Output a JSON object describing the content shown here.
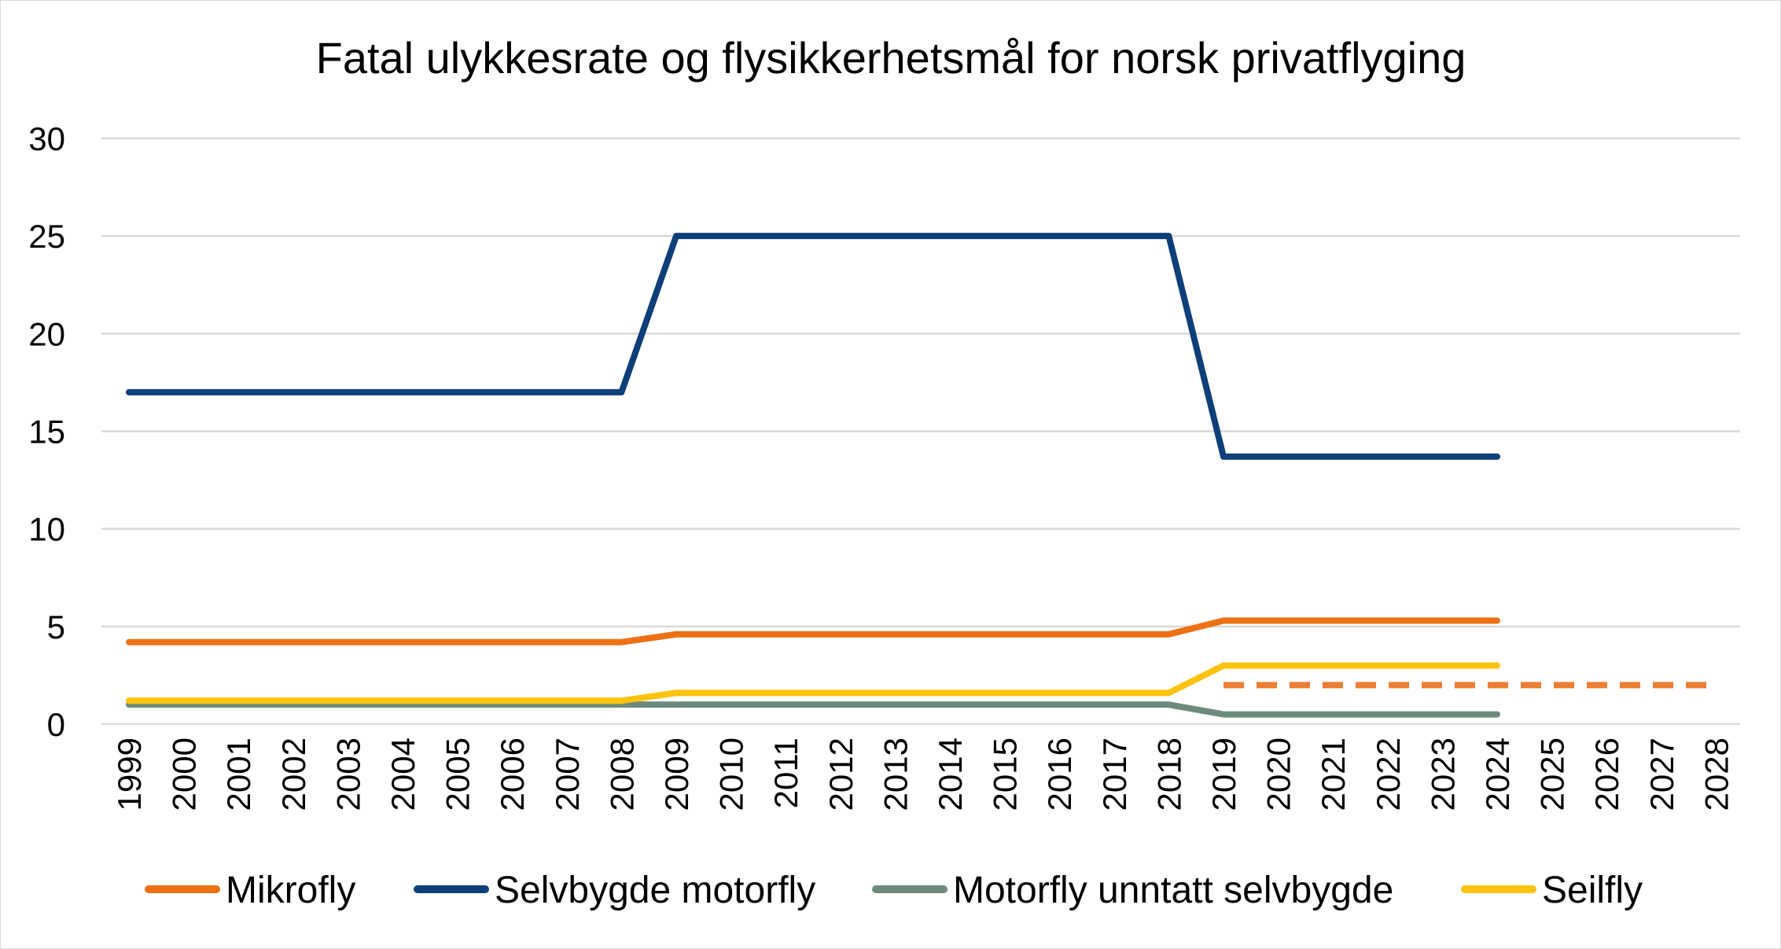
{
  "chart_data": {
    "type": "line",
    "title": "Fatal ulykkesrate og flysikkerhetsmål for norsk privatflyging",
    "xlabel": "",
    "ylabel": "",
    "ylim": [
      0,
      30
    ],
    "yticks": [
      "0",
      "5",
      "10",
      "15",
      "20",
      "25",
      "30"
    ],
    "categories": [
      "1999",
      "2000",
      "2001",
      "2002",
      "2003",
      "2004",
      "2005",
      "2006",
      "2007",
      "2008",
      "2009",
      "2010",
      "2011",
      "2012",
      "2013",
      "2014",
      "2015",
      "2016",
      "2017",
      "2018",
      "2019",
      "2020",
      "2021",
      "2022",
      "2023",
      "2024",
      "2025",
      "2026",
      "2027",
      "2028"
    ],
    "grid": true,
    "legend_position": "bottom",
    "series": [
      {
        "name": "Mikrofly",
        "color": "#ed7014",
        "values": [
          4.2,
          4.2,
          4.2,
          4.2,
          4.2,
          4.2,
          4.2,
          4.2,
          4.2,
          4.2,
          4.6,
          4.6,
          4.6,
          4.6,
          4.6,
          4.6,
          4.6,
          4.6,
          4.6,
          4.6,
          5.3,
          5.3,
          5.3,
          5.3,
          5.3,
          5.3,
          null,
          null,
          null,
          null
        ]
      },
      {
        "name": "Selvbygde motorfly",
        "color": "#0e3f78",
        "values": [
          17,
          17,
          17,
          17,
          17,
          17,
          17,
          17,
          17,
          17,
          25,
          25,
          25,
          25,
          25,
          25,
          25,
          25,
          25,
          25,
          13.7,
          13.7,
          13.7,
          13.7,
          13.7,
          13.7,
          null,
          null,
          null,
          null
        ]
      },
      {
        "name": "Motorfly unntatt selvbygde",
        "color": "#6d8b7c",
        "values": [
          1,
          1,
          1,
          1,
          1,
          1,
          1,
          1,
          1,
          1,
          1,
          1,
          1,
          1,
          1,
          1,
          1,
          1,
          1,
          1,
          0.5,
          0.5,
          0.5,
          0.5,
          0.5,
          0.5,
          null,
          null,
          null,
          null
        ]
      },
      {
        "name": "Seilfly",
        "color": "#fdc20e",
        "values": [
          1.2,
          1.2,
          1.2,
          1.2,
          1.2,
          1.2,
          1.2,
          1.2,
          1.2,
          1.2,
          1.6,
          1.6,
          1.6,
          1.6,
          1.6,
          1.6,
          1.6,
          1.6,
          1.6,
          1.6,
          3,
          3,
          3,
          3,
          3,
          3,
          null,
          null,
          null,
          null
        ]
      },
      {
        "name": "",
        "color": "#ed7d31",
        "dashed": true,
        "show_in_legend": false,
        "values": [
          null,
          null,
          null,
          null,
          null,
          null,
          null,
          null,
          null,
          null,
          null,
          null,
          null,
          null,
          null,
          null,
          null,
          null,
          null,
          null,
          2,
          2,
          2,
          2,
          2,
          2,
          2,
          2,
          2,
          2
        ]
      }
    ]
  }
}
